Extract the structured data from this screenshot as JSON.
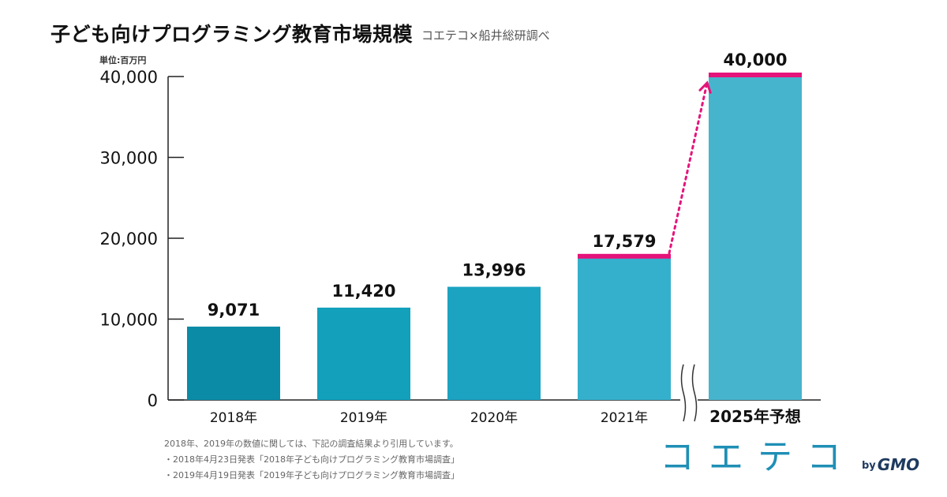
{
  "header": {
    "title": "子ども向けプログラミング教育市場規模",
    "source": "コエテコ×船井総研調べ",
    "unit": "単位:百万円"
  },
  "notes": [
    "2018年、2019年の数値に関しては、下記の調査結果より引用しています。",
    "・2018年4月23日発表「2018年子ども向けプログラミング教育市場調査」",
    "・2019年4月19日発表「2019年子ども向けプログラミング教育市場調査」"
  ],
  "brand": {
    "word": "コエテコ",
    "by": "by",
    "company": "GMO"
  },
  "chart_data": {
    "type": "bar",
    "title": "子ども向けプログラミング教育市場規模",
    "ylabel": "単位:百万円",
    "categories": [
      "2018年",
      "2019年",
      "2020年",
      "2021年",
      "2025年予想"
    ],
    "values": [
      9071,
      11420,
      13996,
      17579,
      40000
    ],
    "value_labels": [
      "9,071",
      "11,420",
      "13,996",
      "17,579",
      "40,000"
    ],
    "ylim": [
      0,
      40000
    ],
    "yticks": [
      0,
      10000,
      20000,
      30000,
      40000
    ],
    "ytick_labels": [
      "0",
      "10,000",
      "20,000",
      "30,000",
      "40,000"
    ],
    "bar_colors": [
      "#0b8ba6",
      "#12a0bb",
      "#1ca3c2",
      "#35b0cc",
      "#47b4cd"
    ],
    "highlight_color": "#e5147a",
    "highlighted": [
      3,
      4
    ],
    "axis_break_before_index": 4,
    "growth_arrow": {
      "from": 3,
      "to": 4
    },
    "grid": false,
    "legend": "none"
  }
}
